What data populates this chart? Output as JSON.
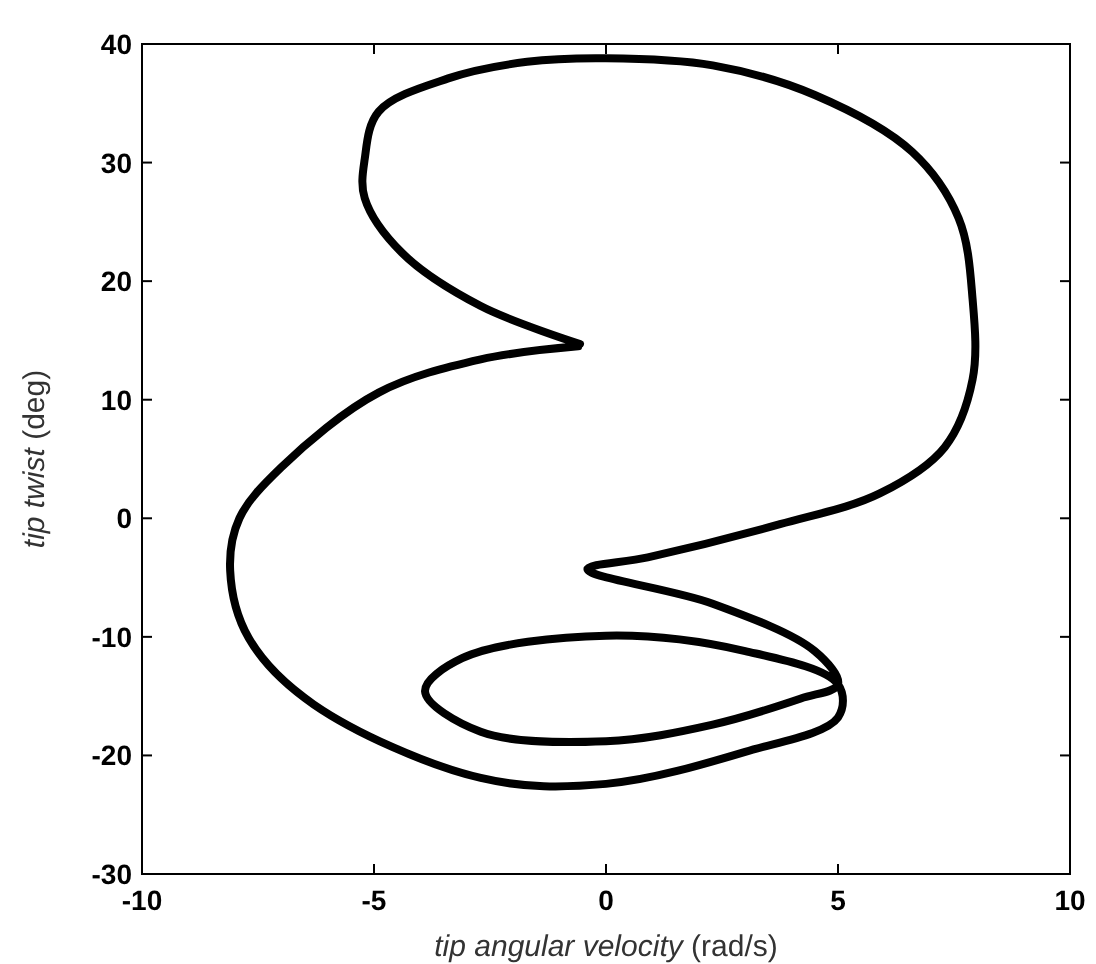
{
  "chart_data": {
    "type": "line",
    "xlabel": "tip angular velocity (rad/s)",
    "ylabel": "tip twist (deg)",
    "xlim": [
      -10,
      10
    ],
    "xticks": [
      -10,
      -5,
      0,
      5,
      10
    ],
    "ylim": [
      -30,
      40
    ],
    "yticks": [
      -30,
      -20,
      -10,
      0,
      10,
      20,
      30,
      40
    ],
    "grid": false,
    "marker": "none",
    "line_style": "solid",
    "x": [
      -0.56,
      -2.7,
      -4.4,
      -5.2,
      -5.2,
      -4.9,
      -3.4,
      -1.7,
      0,
      2.3,
      4.5,
      6.6,
      7.6,
      7.9,
      7.9,
      7.3,
      5.9,
      3.75,
      0.9,
      -0.4,
      2.3,
      4.5,
      5.0,
      4.2,
      2.3,
      0,
      -2.7,
      -3.9,
      -3.1,
      0,
      3,
      5,
      5,
      3,
      0,
      -2.7,
      -6.3,
      -7.7,
      -8.1,
      -7.9,
      -7.0,
      -4.9,
      -2.7,
      -0.6
    ],
    "series": [
      {
        "color": "#000000",
        "values": [
          14.7,
          17.9,
          22.4,
          27,
          30.3,
          34.3,
          37.1,
          38.5,
          38.8,
          38.2,
          35.7,
          30.9,
          25.3,
          18.5,
          11.7,
          6,
          2.1,
          -0.5,
          -3.3,
          -4.3,
          -7.2,
          -11.2,
          -14,
          -15.2,
          -17.4,
          -18.8,
          -18,
          -14.6,
          -11.8,
          -9.9,
          -11.2,
          -14,
          -16.8,
          -19.7,
          -22.4,
          -21.9,
          -15.7,
          -10.1,
          -4.4,
          0,
          4.3,
          10.6,
          13.4,
          14.5
        ]
      }
    ]
  }
}
